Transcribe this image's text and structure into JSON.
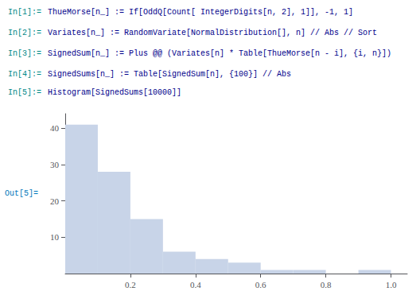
{
  "chart_data": {
    "type": "histogram",
    "annotations": [
      {
        "label": "In[1]:=",
        "text": "ThueMorse[n_] := If[OddQ[Count[ IntegerDigits[n, 2], 1]], -1, 1]",
        "color": "#00008b"
      },
      {
        "label": "In[2]:=",
        "text": "Variates[n_] := RandomVariate[NormalDistribution[], n] // Abs // Sort",
        "color": "#00008b"
      },
      {
        "label": "In[3]:=",
        "text": "SignedSum[n_] := Plus @@ (Variates[n] * Table[ThueMorse[n - i], {i, n}])",
        "color": "#00008b"
      },
      {
        "label": "In[4]:=",
        "text": "SignedSums[n_] := Table[SignedSum[n], {100}] // Abs",
        "color": "#00008b"
      },
      {
        "label": "In[5]:=",
        "text": "Histogram[SignedSums[10000]]",
        "color": "#00008b"
      },
      {
        "text": "Out[5]=",
        "color": "#0077bb"
      }
    ],
    "label_color": "#008888",
    "bins": [
      0.0,
      0.1,
      0.2,
      0.3,
      0.4,
      0.5,
      0.6,
      0.7,
      0.8,
      0.9,
      1.0
    ],
    "values": [
      41,
      28,
      15,
      6,
      4,
      3,
      1,
      1,
      0,
      1
    ],
    "color": "#c8d4e8",
    "xlim": [
      0,
      1.05
    ],
    "ylim": [
      0,
      44
    ],
    "xticks": [
      0.2,
      0.4,
      0.6,
      0.8,
      {
        "value": 1.0,
        "label": "1.0"
      }
    ],
    "yticks": [
      10,
      20,
      30,
      40
    ],
    "grid": false
  }
}
